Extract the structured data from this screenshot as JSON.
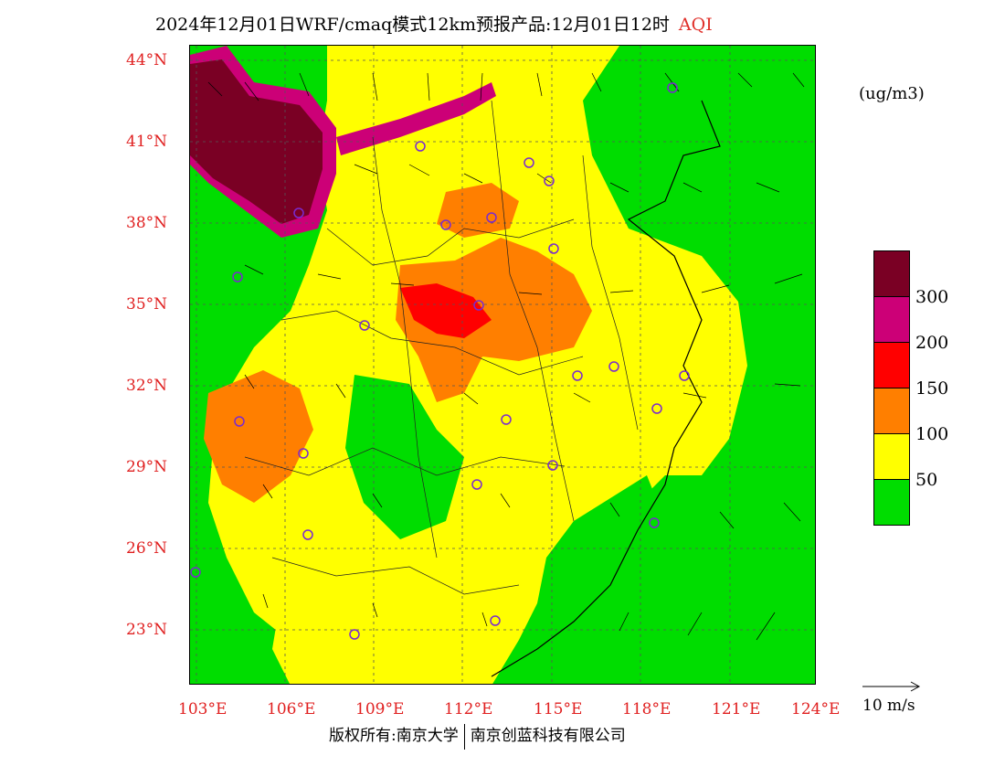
{
  "title": {
    "main": "2024年12月01日WRF/cmaq模式12km预报产品:12月01日12时",
    "variable": "AQI"
  },
  "unit": "(ug/m3)",
  "latitude_labels": [
    "44°N",
    "41°N",
    "38°N",
    "35°N",
    "32°N",
    "29°N",
    "26°N",
    "23°N"
  ],
  "longitude_labels": [
    "103°E",
    "106°E",
    "109°E",
    "112°E",
    "115°E",
    "118°E",
    "121°E",
    "124°E"
  ],
  "legend": {
    "labels": [
      "300",
      "200",
      "150",
      "100",
      "50"
    ],
    "colors": [
      "#7a0024",
      "#cc0077",
      "#ff0000",
      "#ff7f00",
      "#ffff00",
      "#00dd00"
    ]
  },
  "wind_reference": "10 m/s",
  "copyright": {
    "left": "版权所有:南京大学",
    "right": "南京创蓝科技有限公司"
  },
  "colors": {
    "good": "#00dd00",
    "moderate": "#ffff00",
    "sensitive": "#ff7f00",
    "unhealthy": "#ff0000",
    "very_unhealthy": "#cc0077",
    "hazardous": "#7a0024",
    "accent_label": "#e02020"
  }
}
